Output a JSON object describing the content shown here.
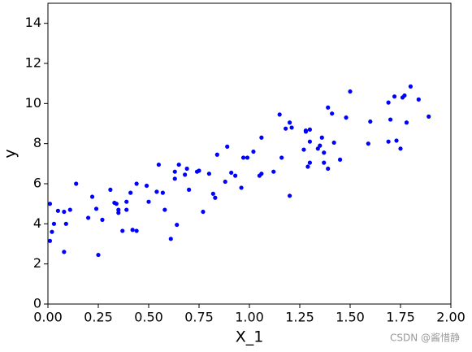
{
  "chart_data": {
    "type": "scatter",
    "xlabel": "X_1",
    "ylabel": "y",
    "color": "#0000ff",
    "xlim": [
      0,
      2
    ],
    "ylim": [
      0,
      15
    ],
    "xticks": [
      {
        "value": 0,
        "label": "0.00"
      },
      {
        "value": 0.25,
        "label": "0.25"
      },
      {
        "value": 0.5,
        "label": "0.50"
      },
      {
        "value": 0.75,
        "label": "0.75"
      },
      {
        "value": 1,
        "label": "1.00"
      },
      {
        "value": 1.25,
        "label": "1.25"
      },
      {
        "value": 1.5,
        "label": "1.50"
      },
      {
        "value": 1.75,
        "label": "1.75"
      },
      {
        "value": 2,
        "label": "2.00"
      }
    ],
    "yticks": [
      0,
      2,
      4,
      6,
      8,
      10,
      12,
      14
    ],
    "x": [
      0.01,
      0.01,
      0.02,
      0.03,
      0.05,
      0.08,
      0.08,
      0.09,
      0.11,
      0.14,
      0.2,
      0.22,
      0.24,
      0.25,
      0.27,
      0.31,
      0.33,
      0.34,
      0.35,
      0.35,
      0.37,
      0.39,
      0.39,
      0.41,
      0.42,
      0.44,
      0.44,
      0.49,
      0.5,
      0.54,
      0.55,
      0.57,
      0.58,
      0.61,
      0.63,
      0.63,
      0.65,
      0.64,
      0.68,
      0.69,
      0.7,
      0.74,
      0.75,
      0.77,
      0.8,
      0.82,
      0.83,
      0.84,
      0.88,
      0.89,
      0.91,
      0.93,
      0.96,
      0.97,
      0.99,
      1.02,
      1.05,
      1.06,
      1.06,
      1.12,
      1.15,
      1.16,
      1.18,
      1.2,
      1.2,
      1.21,
      1.27,
      1.28,
      1.28,
      1.29,
      1.3,
      1.3,
      1.3,
      1.34,
      1.35,
      1.36,
      1.37,
      1.37,
      1.39,
      1.39,
      1.41,
      1.42,
      1.45,
      1.48,
      1.5,
      1.59,
      1.6,
      1.69,
      1.69,
      1.7,
      1.72,
      1.73,
      1.75,
      1.76,
      1.77,
      1.78,
      1.8,
      1.84,
      1.89
    ],
    "values": [
      3.15,
      5.0,
      3.6,
      4.0,
      4.65,
      2.6,
      4.6,
      4.0,
      4.7,
      6.0,
      4.3,
      5.35,
      4.75,
      2.45,
      4.2,
      5.7,
      5.05,
      5.0,
      4.7,
      4.55,
      3.65,
      4.7,
      5.1,
      5.55,
      3.7,
      6.0,
      3.65,
      5.9,
      5.1,
      5.6,
      6.95,
      5.55,
      4.7,
      3.25,
      6.25,
      6.6,
      6.95,
      3.95,
      6.45,
      6.75,
      5.7,
      6.6,
      6.65,
      4.6,
      6.5,
      5.5,
      5.3,
      7.45,
      6.1,
      7.85,
      6.55,
      6.4,
      5.8,
      7.3,
      7.3,
      7.6,
      6.4,
      6.5,
      8.3,
      6.6,
      9.45,
      7.3,
      8.75,
      9.05,
      5.4,
      8.8,
      7.7,
      8.6,
      8.65,
      6.85,
      7.05,
      8.7,
      8.1,
      7.75,
      7.9,
      8.3,
      7.55,
      7.05,
      9.8,
      6.75,
      9.5,
      8.05,
      7.2,
      9.3,
      10.6,
      8.0,
      9.1,
      8.1,
      10.05,
      9.2,
      10.35,
      8.15,
      7.75,
      10.3,
      10.4,
      9.05,
      10.85,
      10.2,
      9.35
    ],
    "watermark": "CSDN @酱惜静"
  }
}
